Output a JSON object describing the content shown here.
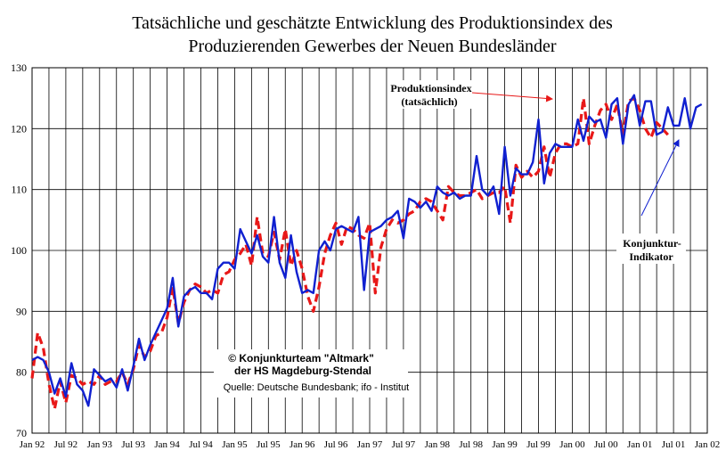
{
  "chart_data": {
    "type": "line",
    "title": [
      "Tatsächliche und geschätzte Entwicklung des Produktionsindex des",
      "Produzierenden Gewerbes der Neuen Bundesländer"
    ],
    "xlabel": "",
    "ylabel": "",
    "ylim": [
      70,
      130
    ],
    "yticks": [
      70,
      80,
      90,
      100,
      110,
      120,
      130
    ],
    "grid": true,
    "x_tick_labels": [
      "Jan 92",
      "Jul 92",
      "Jan 93",
      "Jul 93",
      "Jan 94",
      "Jul 94",
      "Jan 95",
      "Jul 95",
      "Jan 96",
      "Jul 96",
      "Jan 97",
      "Jul 97",
      "Jan 98",
      "Jul 98",
      "Jan 99",
      "Jul 99",
      "Jan 00",
      "Jul 00",
      "Jan 01",
      "Jul 01",
      "Jan 02"
    ],
    "x_start": "1992-01",
    "x_end": "2002-01",
    "series": [
      {
        "color": "#e81818",
        "style": "dashed",
        "x": [
          "1992-01",
          "1992-02",
          "1992-03",
          "1992-04",
          "1992-05",
          "1992-06",
          "1992-07",
          "1992-08",
          "1992-09",
          "1992-10",
          "1992-11",
          "1992-12",
          "1993-01",
          "1993-02",
          "1993-03",
          "1993-04",
          "1993-05",
          "1993-06",
          "1993-07",
          "1993-08",
          "1993-09",
          "1993-10",
          "1993-11",
          "1993-12",
          "1994-01",
          "1994-02",
          "1994-03",
          "1994-04",
          "1994-05",
          "1994-06",
          "1994-07",
          "1994-08",
          "1994-09",
          "1994-10",
          "1994-11",
          "1994-12",
          "1995-01",
          "1995-02",
          "1995-03",
          "1995-04",
          "1995-05",
          "1995-06",
          "1995-07",
          "1995-08",
          "1995-09",
          "1995-10",
          "1995-11",
          "1995-12",
          "1996-01",
          "1996-02",
          "1996-03",
          "1996-04",
          "1996-05",
          "1996-06",
          "1996-07",
          "1996-08",
          "1996-09",
          "1996-10",
          "1996-11",
          "1996-12",
          "1997-01",
          "1997-02",
          "1997-03",
          "1997-04",
          "1997-05",
          "1997-06",
          "1997-07",
          "1997-08",
          "1997-09",
          "1997-10",
          "1997-11",
          "1997-12",
          "1998-01",
          "1998-02",
          "1998-03",
          "1998-04",
          "1998-05",
          "1998-06",
          "1998-07",
          "1998-08",
          "1998-09",
          "1998-10",
          "1998-11",
          "1998-12",
          "1999-01",
          "1999-02",
          "1999-03",
          "1999-04",
          "1999-05",
          "1999-06",
          "1999-07",
          "1999-08",
          "1999-09",
          "1999-10",
          "1999-11",
          "1999-12",
          "2000-01",
          "2000-02",
          "2000-03",
          "2000-04",
          "2000-05",
          "2000-06",
          "2000-07",
          "2000-08",
          "2000-09",
          "2000-10",
          "2000-11",
          "2000-12",
          "2001-01",
          "2001-02",
          "2001-03",
          "2001-04",
          "2001-05",
          "2001-06"
        ],
        "y": [
          79.0,
          86.5,
          84.0,
          78.0,
          74.0,
          78.5,
          75.0,
          79.5,
          79.0,
          78.0,
          78.5,
          78.0,
          79.5,
          78.0,
          78.5,
          78.5,
          80.0,
          78.0,
          80.5,
          84.5,
          82.5,
          83.5,
          86.0,
          86.5,
          89.0,
          94.0,
          88.0,
          91.5,
          93.5,
          94.5,
          94.0,
          93.0,
          93.5,
          93.0,
          96.0,
          96.5,
          98.5,
          99.5,
          101.0,
          97.5,
          105.5,
          99.5,
          99.0,
          103.0,
          98.5,
          103.5,
          97.5,
          100.0,
          97.0,
          92.5,
          90.0,
          94.0,
          99.5,
          102.5,
          104.5,
          101.0,
          104.0,
          103.5,
          102.5,
          102.0,
          104.5,
          93.0,
          100.5,
          103.5,
          105.0,
          104.5,
          105.0,
          106.0,
          106.5,
          108.0,
          108.5,
          108.0,
          106.5,
          105.0,
          110.5,
          109.5,
          109.0,
          109.0,
          109.5,
          110.0,
          108.5,
          109.0,
          109.5,
          109.5,
          110.5,
          104.5,
          114.0,
          112.0,
          113.0,
          112.0,
          113.0,
          117.0,
          112.0,
          116.0,
          117.5,
          117.5,
          117.0,
          117.5,
          125.0,
          117.5,
          120.5,
          123.0,
          124.0,
          121.5,
          124.0,
          119.0,
          124.5,
          125.0,
          123.0,
          120.0,
          118.5,
          121.0,
          120.0,
          119.0
        ]
      },
      {
        "color": "#1020d0",
        "style": "solid",
        "x": [
          "1992-01",
          "1992-02",
          "1992-03",
          "1992-04",
          "1992-05",
          "1992-06",
          "1992-07",
          "1992-08",
          "1992-09",
          "1992-10",
          "1992-11",
          "1992-12",
          "1993-01",
          "1993-02",
          "1993-03",
          "1993-04",
          "1993-05",
          "1993-06",
          "1993-07",
          "1993-08",
          "1993-09",
          "1993-10",
          "1993-11",
          "1993-12",
          "1994-01",
          "1994-02",
          "1994-03",
          "1994-04",
          "1994-05",
          "1994-06",
          "1994-07",
          "1994-08",
          "1994-09",
          "1994-10",
          "1994-11",
          "1994-12",
          "1995-01",
          "1995-02",
          "1995-03",
          "1995-04",
          "1995-05",
          "1995-06",
          "1995-07",
          "1995-08",
          "1995-09",
          "1995-10",
          "1995-11",
          "1995-12",
          "1996-01",
          "1996-02",
          "1996-03",
          "1996-04",
          "1996-05",
          "1996-06",
          "1996-07",
          "1996-08",
          "1996-09",
          "1996-10",
          "1996-11",
          "1996-12",
          "1997-01",
          "1997-02",
          "1997-03",
          "1997-04",
          "1997-05",
          "1997-06",
          "1997-07",
          "1997-08",
          "1997-09",
          "1997-10",
          "1997-11",
          "1997-12",
          "1998-01",
          "1998-02",
          "1998-03",
          "1998-04",
          "1998-05",
          "1998-06",
          "1998-07",
          "1998-08",
          "1998-09",
          "1998-10",
          "1998-11",
          "1998-12",
          "1999-01",
          "1999-02",
          "1999-03",
          "1999-04",
          "1999-05",
          "1999-06",
          "1999-07",
          "1999-08",
          "1999-09",
          "1999-10",
          "1999-11",
          "1999-12",
          "2000-01",
          "2000-02",
          "2000-03",
          "2000-04",
          "2000-05",
          "2000-06",
          "2000-07",
          "2000-08",
          "2000-09",
          "2000-10",
          "2000-11",
          "2000-12",
          "2001-01",
          "2001-02",
          "2001-03",
          "2001-04",
          "2001-05",
          "2001-06",
          "2001-07",
          "2001-08",
          "2001-09",
          "2001-10",
          "2001-11",
          "2001-12"
        ],
        "y": [
          82.0,
          82.5,
          82.0,
          80.0,
          76.5,
          79.0,
          76.0,
          81.5,
          78.0,
          77.0,
          74.5,
          80.5,
          79.5,
          78.5,
          79.0,
          77.5,
          80.5,
          77.0,
          81.0,
          85.5,
          82.0,
          84.5,
          86.5,
          88.5,
          90.5,
          95.5,
          87.5,
          92.5,
          93.5,
          94.0,
          93.0,
          93.0,
          92.0,
          97.0,
          98.0,
          98.0,
          97.0,
          103.5,
          101.5,
          99.5,
          102.5,
          99.0,
          98.0,
          105.5,
          98.0,
          95.5,
          102.5,
          96.5,
          93.0,
          93.5,
          93.0,
          100.0,
          101.5,
          100.0,
          103.5,
          104.0,
          103.5,
          103.0,
          105.5,
          93.5,
          103.0,
          103.5,
          104.0,
          105.0,
          105.5,
          106.5,
          102.0,
          108.5,
          108.0,
          107.0,
          108.0,
          106.5,
          110.5,
          109.5,
          109.0,
          109.5,
          108.5,
          109.0,
          109.0,
          115.5,
          110.0,
          109.0,
          110.5,
          106.0,
          117.0,
          109.0,
          113.5,
          112.5,
          112.5,
          114.5,
          121.5,
          111.0,
          116.0,
          117.5,
          117.0,
          117.0,
          117.0,
          121.5,
          118.0,
          122.0,
          121.0,
          121.5,
          118.5,
          124.0,
          125.0,
          117.5,
          124.0,
          125.5,
          120.5,
          124.5,
          124.5,
          119.0,
          119.5,
          123.5,
          120.5,
          120.5,
          125.0,
          120.0,
          123.5,
          124.0
        ]
      }
    ],
    "annotations": [
      {
        "lines": [
          "Produktionsindex",
          "(tatsächlich)"
        ],
        "target_x": "2000-02",
        "target_y": 124.5
      },
      {
        "lines": [
          "Konjunktur-",
          "Indikator"
        ],
        "target_x": "2001-07",
        "target_y": 117.5
      }
    ],
    "credit": {
      "line1": "©  Konjunkturteam \"Altmark\"",
      "line2": "der HS Magdeburg-Stendal",
      "line3": "Quelle: Deutsche Bundesbank; ifo - Institut"
    }
  }
}
